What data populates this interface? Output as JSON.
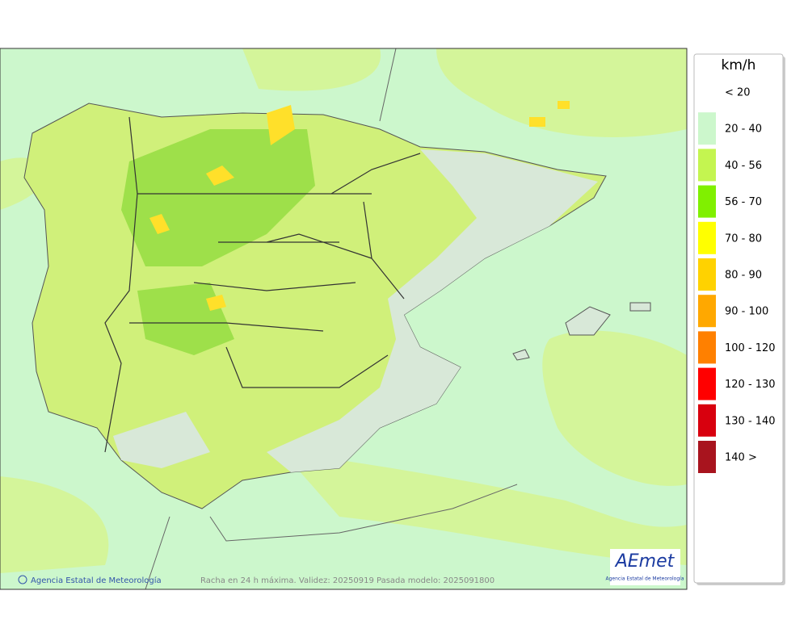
{
  "legend": {
    "title": "km/h",
    "items": [
      {
        "label": "< 20",
        "color": "#ffffff"
      },
      {
        "label": "20 - 40",
        "color": "#ccf7cc"
      },
      {
        "label": "40 - 56",
        "color": "#c4f550"
      },
      {
        "label": "56 - 70",
        "color": "#80f000"
      },
      {
        "label": "70 - 80",
        "color": "#ffff00"
      },
      {
        "label": "80 - 90",
        "color": "#ffd200"
      },
      {
        "label": "90 - 100",
        "color": "#ffa800"
      },
      {
        "label": "100 - 120",
        "color": "#ff8000"
      },
      {
        "label": "120 - 130",
        "color": "#ff0000"
      },
      {
        "label": "130 - 140",
        "color": "#d8000e"
      },
      {
        "label": "140 >",
        "color": "#a8141e"
      }
    ]
  },
  "footer": {
    "credit": "Agencia Estatal de Meteorología",
    "caption": "Racha en 24 h máxima. Validez: 20250919 Pasada modelo: 2025091800"
  },
  "logo": {
    "text": "AEmet",
    "subtitle": "Agencia Estatal de Meteorología"
  }
}
